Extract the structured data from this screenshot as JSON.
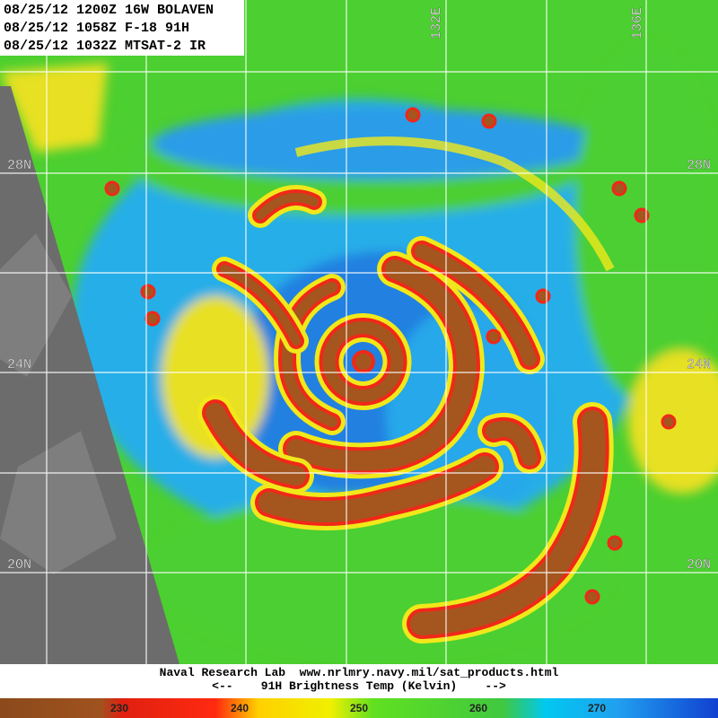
{
  "header": {
    "lines": [
      "08/25/12 1200Z 16W BOLAVEN",
      "08/25/12 1058Z F-18 91H",
      "08/25/12 1032Z MTSAT-2 IR"
    ]
  },
  "grid_labels": {
    "latitudes": [
      "28N",
      "24N",
      "20N"
    ],
    "longitudes": [
      "132E",
      "136E"
    ]
  },
  "footer": {
    "credit": "Naval Research Lab  www.nrlmry.navy.mil/sat_products.html",
    "scale_title": "<--    91H Brightness Temp (Kelvin)    -->"
  },
  "colorbar": {
    "labels": [
      "230",
      "240",
      "250",
      "260",
      "270"
    ]
  }
}
